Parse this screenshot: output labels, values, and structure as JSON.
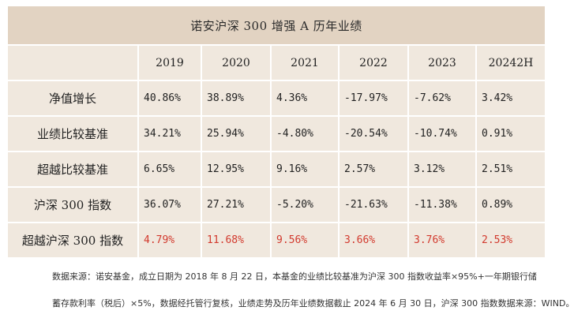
{
  "title": "诺安沪深 300 增强 A 历年业绩",
  "columns": [
    "",
    "2019",
    "2020",
    "2021",
    "2022",
    "2023",
    "20242H"
  ],
  "rows": [
    {
      "label": "净值增长",
      "values": [
        "40.86%",
        "38.89%",
        "4.36%",
        "-17.97%",
        "-7.62%",
        "3.42%"
      ],
      "highlight": false
    },
    {
      "label": "业绩比较基准",
      "values": [
        "34.21%",
        "25.94%",
        "-4.80%",
        "-20.54%",
        "-10.74%",
        "0.91%"
      ],
      "highlight": false
    },
    {
      "label": "超越比较基准",
      "values": [
        "6.65%",
        "12.95%",
        "9.16%",
        "2.57%",
        "3.12%",
        "2.51%"
      ],
      "highlight": false
    },
    {
      "label": "沪深 300 指数",
      "values": [
        "36.07%",
        "27.21%",
        "-5.20%",
        "-21.63%",
        "-11.38%",
        "0.89%"
      ],
      "highlight": false
    },
    {
      "label": "超越沪深 300 指数",
      "values": [
        "4.79%",
        "11.68%",
        "9.56%",
        "3.66%",
        "3.76%",
        "2.53%"
      ],
      "highlight": true
    }
  ],
  "colors": {
    "header_bg": "#e2d3c2",
    "cell_bg": "#f0e8de",
    "highlight_text": "#d23a2e"
  },
  "notes": {
    "line1": "数据来源：诺安基金，成立日期为 2018 年 8 月 22 日，本基金的业绩比较基准为沪深 300 指数收益率×95%+一年期银行储",
    "line2": "蓄存款利率（税后）×5%，数据经托管行复核，业绩走势及历年业绩数据截止 2024 年 6 月 30 日，沪深 300 指数数据来源：WIND。"
  }
}
